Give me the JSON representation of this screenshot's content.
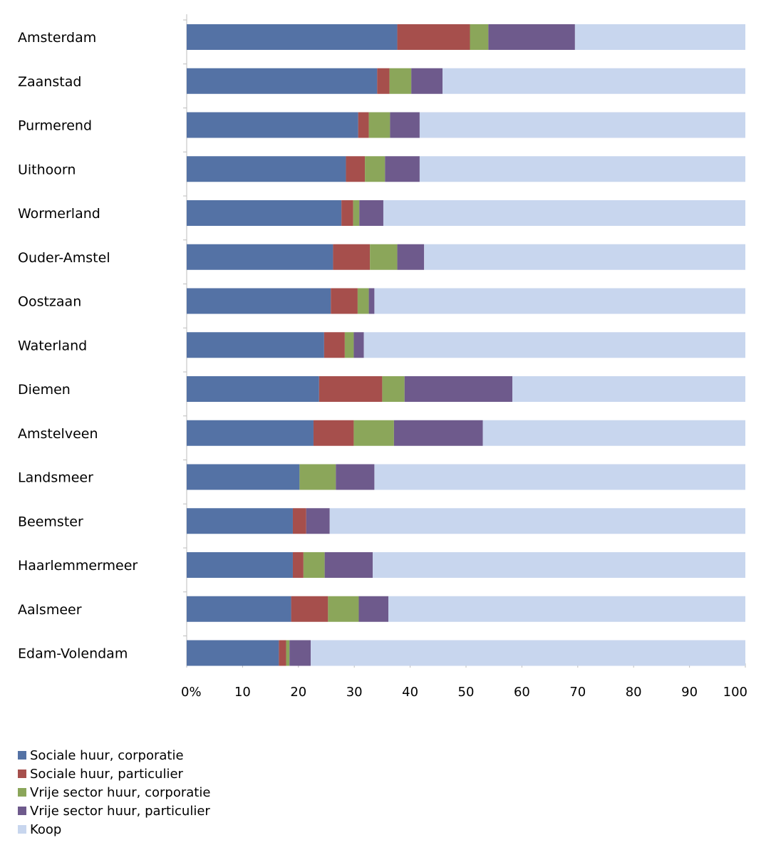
{
  "chart_data": {
    "type": "bar",
    "orientation": "horizontal",
    "stacked": true,
    "title": "",
    "xlabel": "",
    "ylabel": "",
    "xlim": [
      0,
      100
    ],
    "x_ticks": [
      "0%",
      "10",
      "20",
      "30",
      "40",
      "50",
      "60",
      "70",
      "80",
      "90",
      "100"
    ],
    "grid": false,
    "legend_position": "bottom-left",
    "categories": [
      "Amsterdam",
      "Zaanstad",
      "Purmerend",
      "Uithoorn",
      "Wormerland",
      "Ouder-Amstel",
      "Oostzaan",
      "Waterland",
      "Diemen",
      "Amstelveen",
      "Landsmeer",
      "Beemster",
      "Haarlemmermeer",
      "Aalsmeer",
      "Edam-Volendam"
    ],
    "series": [
      {
        "name": "Sociale huur, corporatie",
        "color": "#5472a5",
        "values": [
          37.7,
          34.1,
          30.7,
          28.5,
          27.7,
          26.2,
          25.8,
          24.6,
          23.7,
          22.7,
          20.2,
          19.0,
          19.0,
          18.7,
          16.5
        ]
      },
      {
        "name": "Sociale huur, particulier",
        "color": "#a64f4c",
        "values": [
          13.0,
          2.2,
          1.9,
          3.4,
          2.1,
          6.6,
          4.8,
          3.7,
          11.3,
          7.2,
          0,
          2.4,
          1.9,
          6.6,
          1.3
        ]
      },
      {
        "name": "Vrije sector huur, corporatie",
        "color": "#8ba65a",
        "values": [
          3.3,
          3.9,
          3.8,
          3.6,
          1.1,
          4.9,
          2.0,
          1.6,
          4.0,
          7.2,
          6.5,
          0,
          3.8,
          5.5,
          0.6
        ]
      },
      {
        "name": "Vrije sector huur, particulier",
        "color": "#6e5a8c",
        "values": [
          15.5,
          5.6,
          5.3,
          6.2,
          4.3,
          4.8,
          1.0,
          1.8,
          19.3,
          15.9,
          6.9,
          4.2,
          8.6,
          5.3,
          3.8
        ]
      },
      {
        "name": "Koop",
        "color": "#c8d6ee",
        "values": [
          30.5,
          54.2,
          58.3,
          58.3,
          64.8,
          57.5,
          66.4,
          68.3,
          41.7,
          47.0,
          66.4,
          74.4,
          66.7,
          63.9,
          77.8
        ]
      }
    ]
  }
}
